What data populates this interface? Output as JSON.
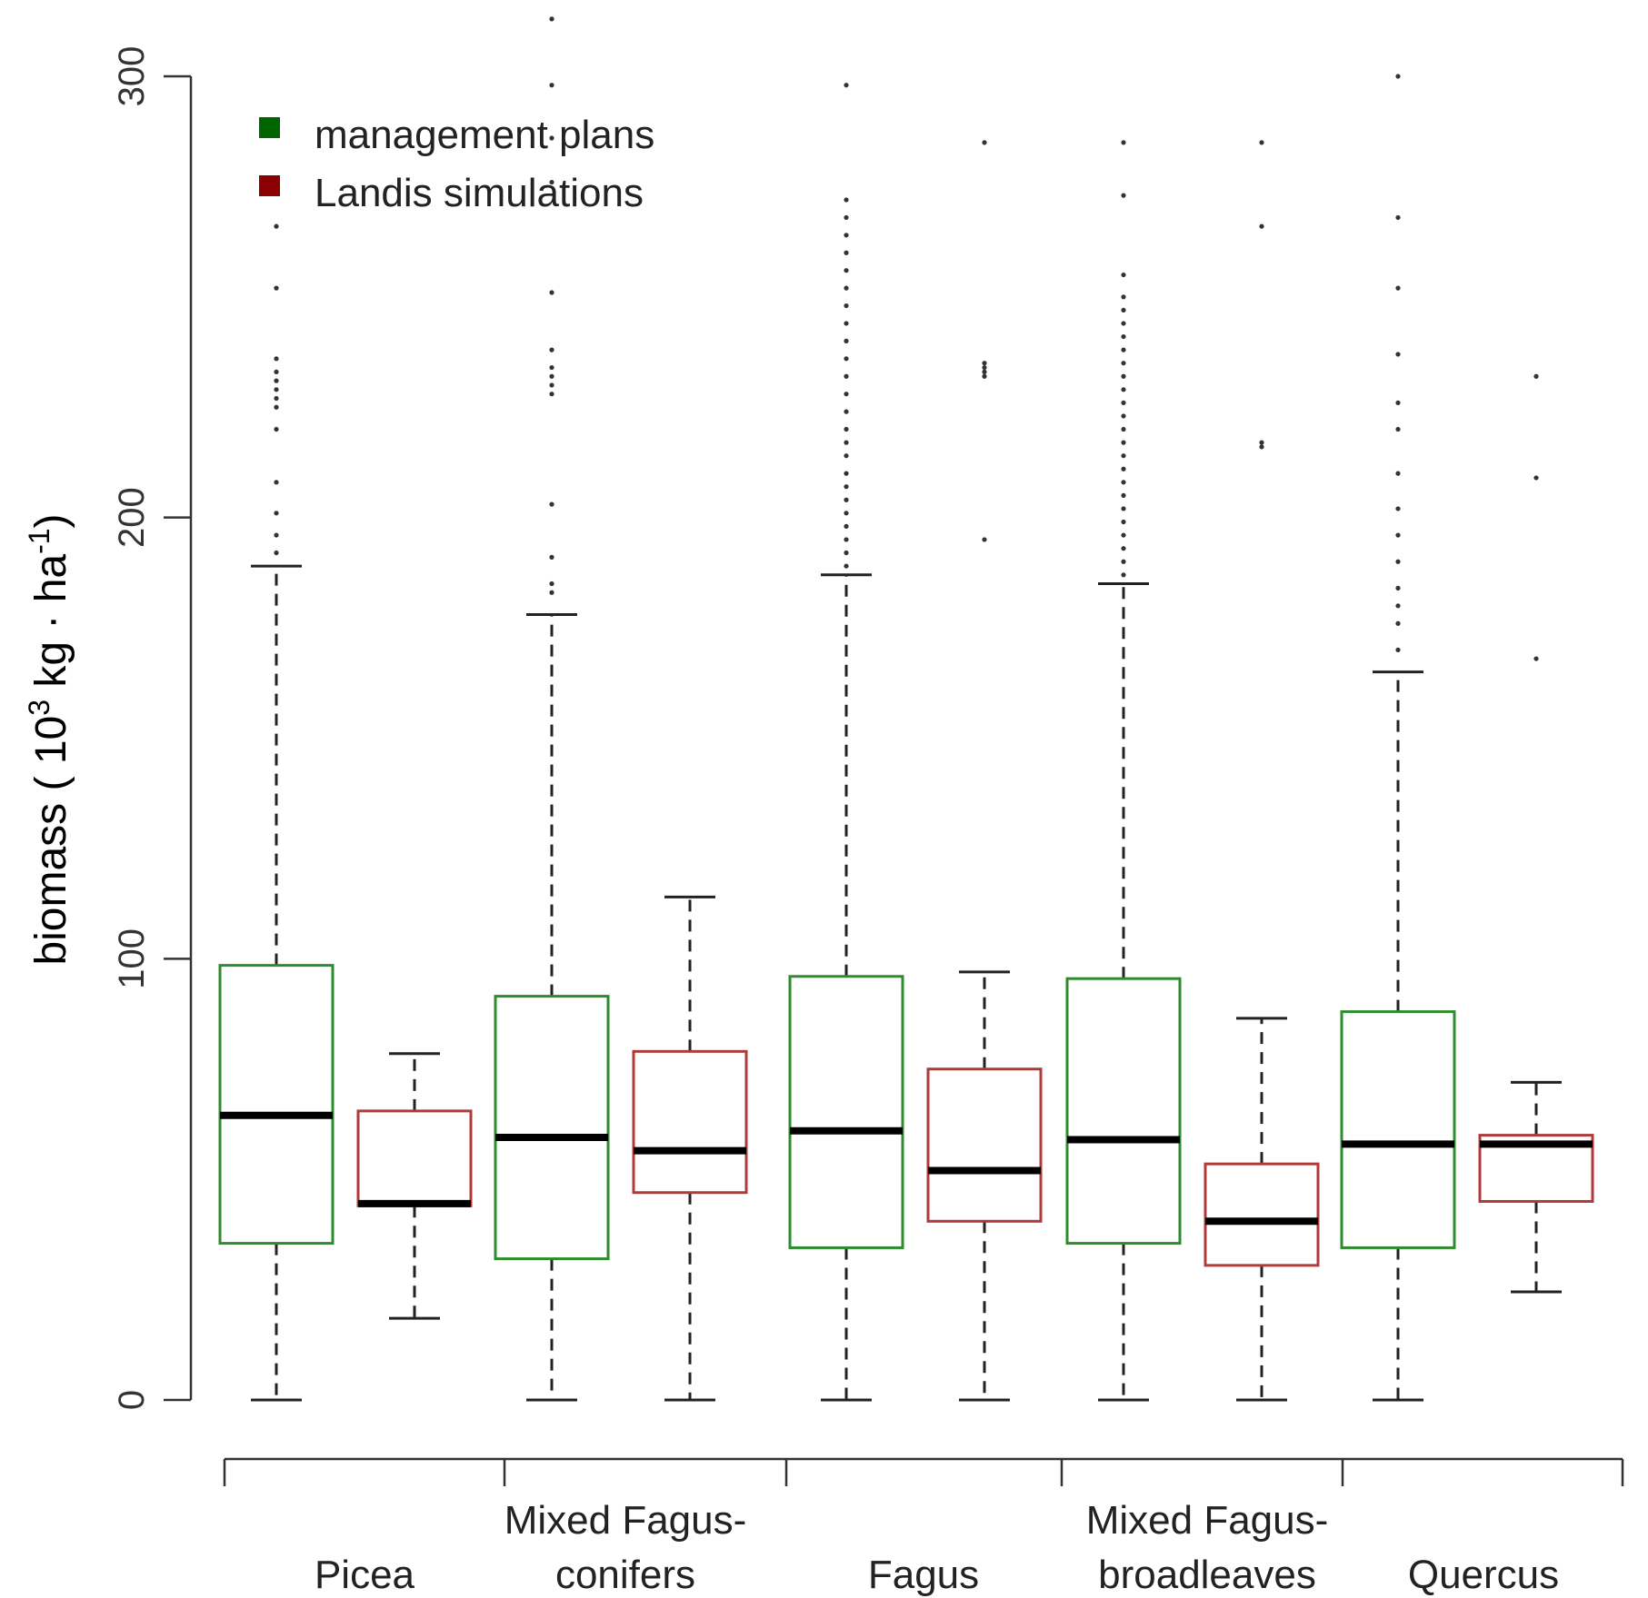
{
  "chart_data": {
    "type": "boxplot",
    "ylabel": {
      "main": "biomass ( 10",
      "sup1": "3",
      "mid": " kg · ha",
      "sup2": "-1",
      "end": ")"
    },
    "ylim": [
      0,
      300
    ],
    "yticks": [
      "0",
      "100",
      "200",
      "300"
    ],
    "legend_position": "top-left",
    "colors": {
      "management plans": "#2e8b2e",
      "Landis simulations": "#b03a3a",
      "legend_management": "#006400",
      "legend_landis": "#8b0000",
      "median": "#000000",
      "whisker": "#222222"
    },
    "legend": [
      {
        "label": "management plans",
        "color_key": "legend_management"
      },
      {
        "label": "Landis simulations",
        "color_key": "legend_landis"
      }
    ],
    "categories": [
      {
        "lines": [
          "Picea"
        ]
      },
      {
        "lines": [
          "Mixed Fagus-",
          "conifers"
        ]
      },
      {
        "lines": [
          "Fagus"
        ]
      },
      {
        "lines": [
          "Mixed Fagus-",
          "broadleaves"
        ]
      },
      {
        "lines": [
          "Quercus"
        ]
      }
    ],
    "series": [
      {
        "name": "management plans",
        "boxes": [
          {
            "whisker_low": 0,
            "q1": 35.5,
            "median": 64.5,
            "q3": 98.5,
            "whisker_high": 189,
            "outliers": [
              192,
              196,
              201,
              208,
              220,
              225,
              227,
              229,
              231,
              233,
              236,
              252,
              266
            ]
          },
          {
            "whisker_low": 0,
            "q1": 32,
            "median": 59.5,
            "q3": 91.5,
            "whisker_high": 178,
            "outliers": [
              183,
              185,
              191,
              203,
              228,
              230,
              232,
              234,
              238,
              251,
              276,
              286,
              298,
              313
            ]
          },
          {
            "whisker_low": 0,
            "q1": 34.5,
            "median": 61,
            "q3": 96,
            "whisker_high": 187,
            "outliers": [
              189,
              192,
              195,
              198,
              201,
              204,
              207,
              210,
              214,
              217,
              220,
              224,
              228,
              232,
              236,
              240,
              244,
              248,
              252,
              256,
              260,
              264,
              268,
              272,
              298
            ]
          },
          {
            "whisker_low": 0,
            "q1": 35.5,
            "median": 59,
            "q3": 95.5,
            "whisker_high": 185,
            "outliers": [
              187,
              190,
              193,
              196,
              199,
              202,
              205,
              208,
              211,
              214,
              217,
              220,
              223,
              226,
              229,
              232,
              235,
              238,
              241,
              244,
              247,
              250,
              255,
              273,
              285
            ]
          },
          {
            "whisker_low": 0,
            "q1": 34.5,
            "median": 58,
            "q3": 88,
            "whisker_high": 165,
            "outliers": [
              170,
              176,
              180,
              184,
              190,
              196,
              202,
              210,
              220,
              226,
              237,
              252,
              268,
              300
            ]
          }
        ]
      },
      {
        "name": "Landis simulations",
        "boxes": [
          {
            "whisker_low": 18.5,
            "q1": 44,
            "median": 44.5,
            "q3": 65.5,
            "whisker_high": 78.5,
            "outliers": []
          },
          {
            "whisker_low": 0,
            "q1": 47,
            "median": 56.5,
            "q3": 79,
            "whisker_high": 114,
            "outliers": []
          },
          {
            "whisker_low": 0,
            "q1": 40.5,
            "median": 52,
            "q3": 75,
            "whisker_high": 97,
            "outliers": [
              195,
              232,
              233,
              234,
              235,
              285
            ]
          },
          {
            "whisker_low": 0,
            "q1": 30.5,
            "median": 40.5,
            "q3": 53.5,
            "whisker_high": 86.5,
            "outliers": [
              216,
              217,
              266,
              285
            ]
          },
          {
            "whisker_low": 24.5,
            "q1": 45,
            "median": 58,
            "q3": 60,
            "whisker_high": 72,
            "outliers": [
              168,
              209,
              232
            ]
          }
        ]
      }
    ]
  }
}
